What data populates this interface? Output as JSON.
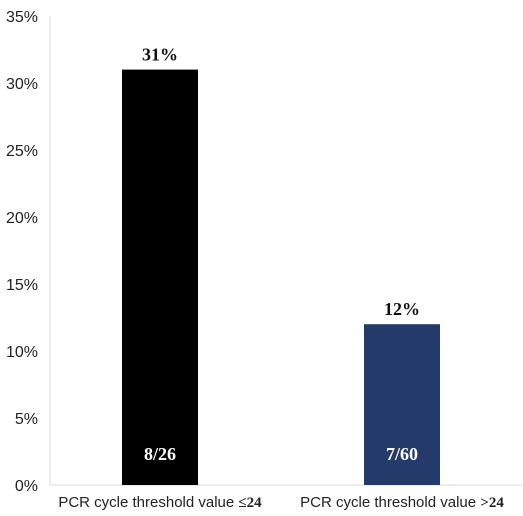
{
  "chart_data": {
    "type": "bar",
    "categories": [
      {
        "text": "PCR cycle threshold value ",
        "emph": "≤24"
      },
      {
        "text": "PCR cycle threshold value ",
        "emph": ">24"
      }
    ],
    "values": [
      31,
      12
    ],
    "value_labels": [
      "31%",
      "12%"
    ],
    "inner_labels": [
      "8/26",
      "7/60"
    ],
    "colors": [
      "#000000",
      "#243a6b"
    ],
    "ylim": [
      0,
      35
    ],
    "yticks": [
      0,
      5,
      10,
      15,
      20,
      25,
      30,
      35
    ],
    "ytick_labels": [
      "0%",
      "5%",
      "10%",
      "15%",
      "20%",
      "25%",
      "30%",
      "35%"
    ],
    "grid": false,
    "legend": "none"
  }
}
